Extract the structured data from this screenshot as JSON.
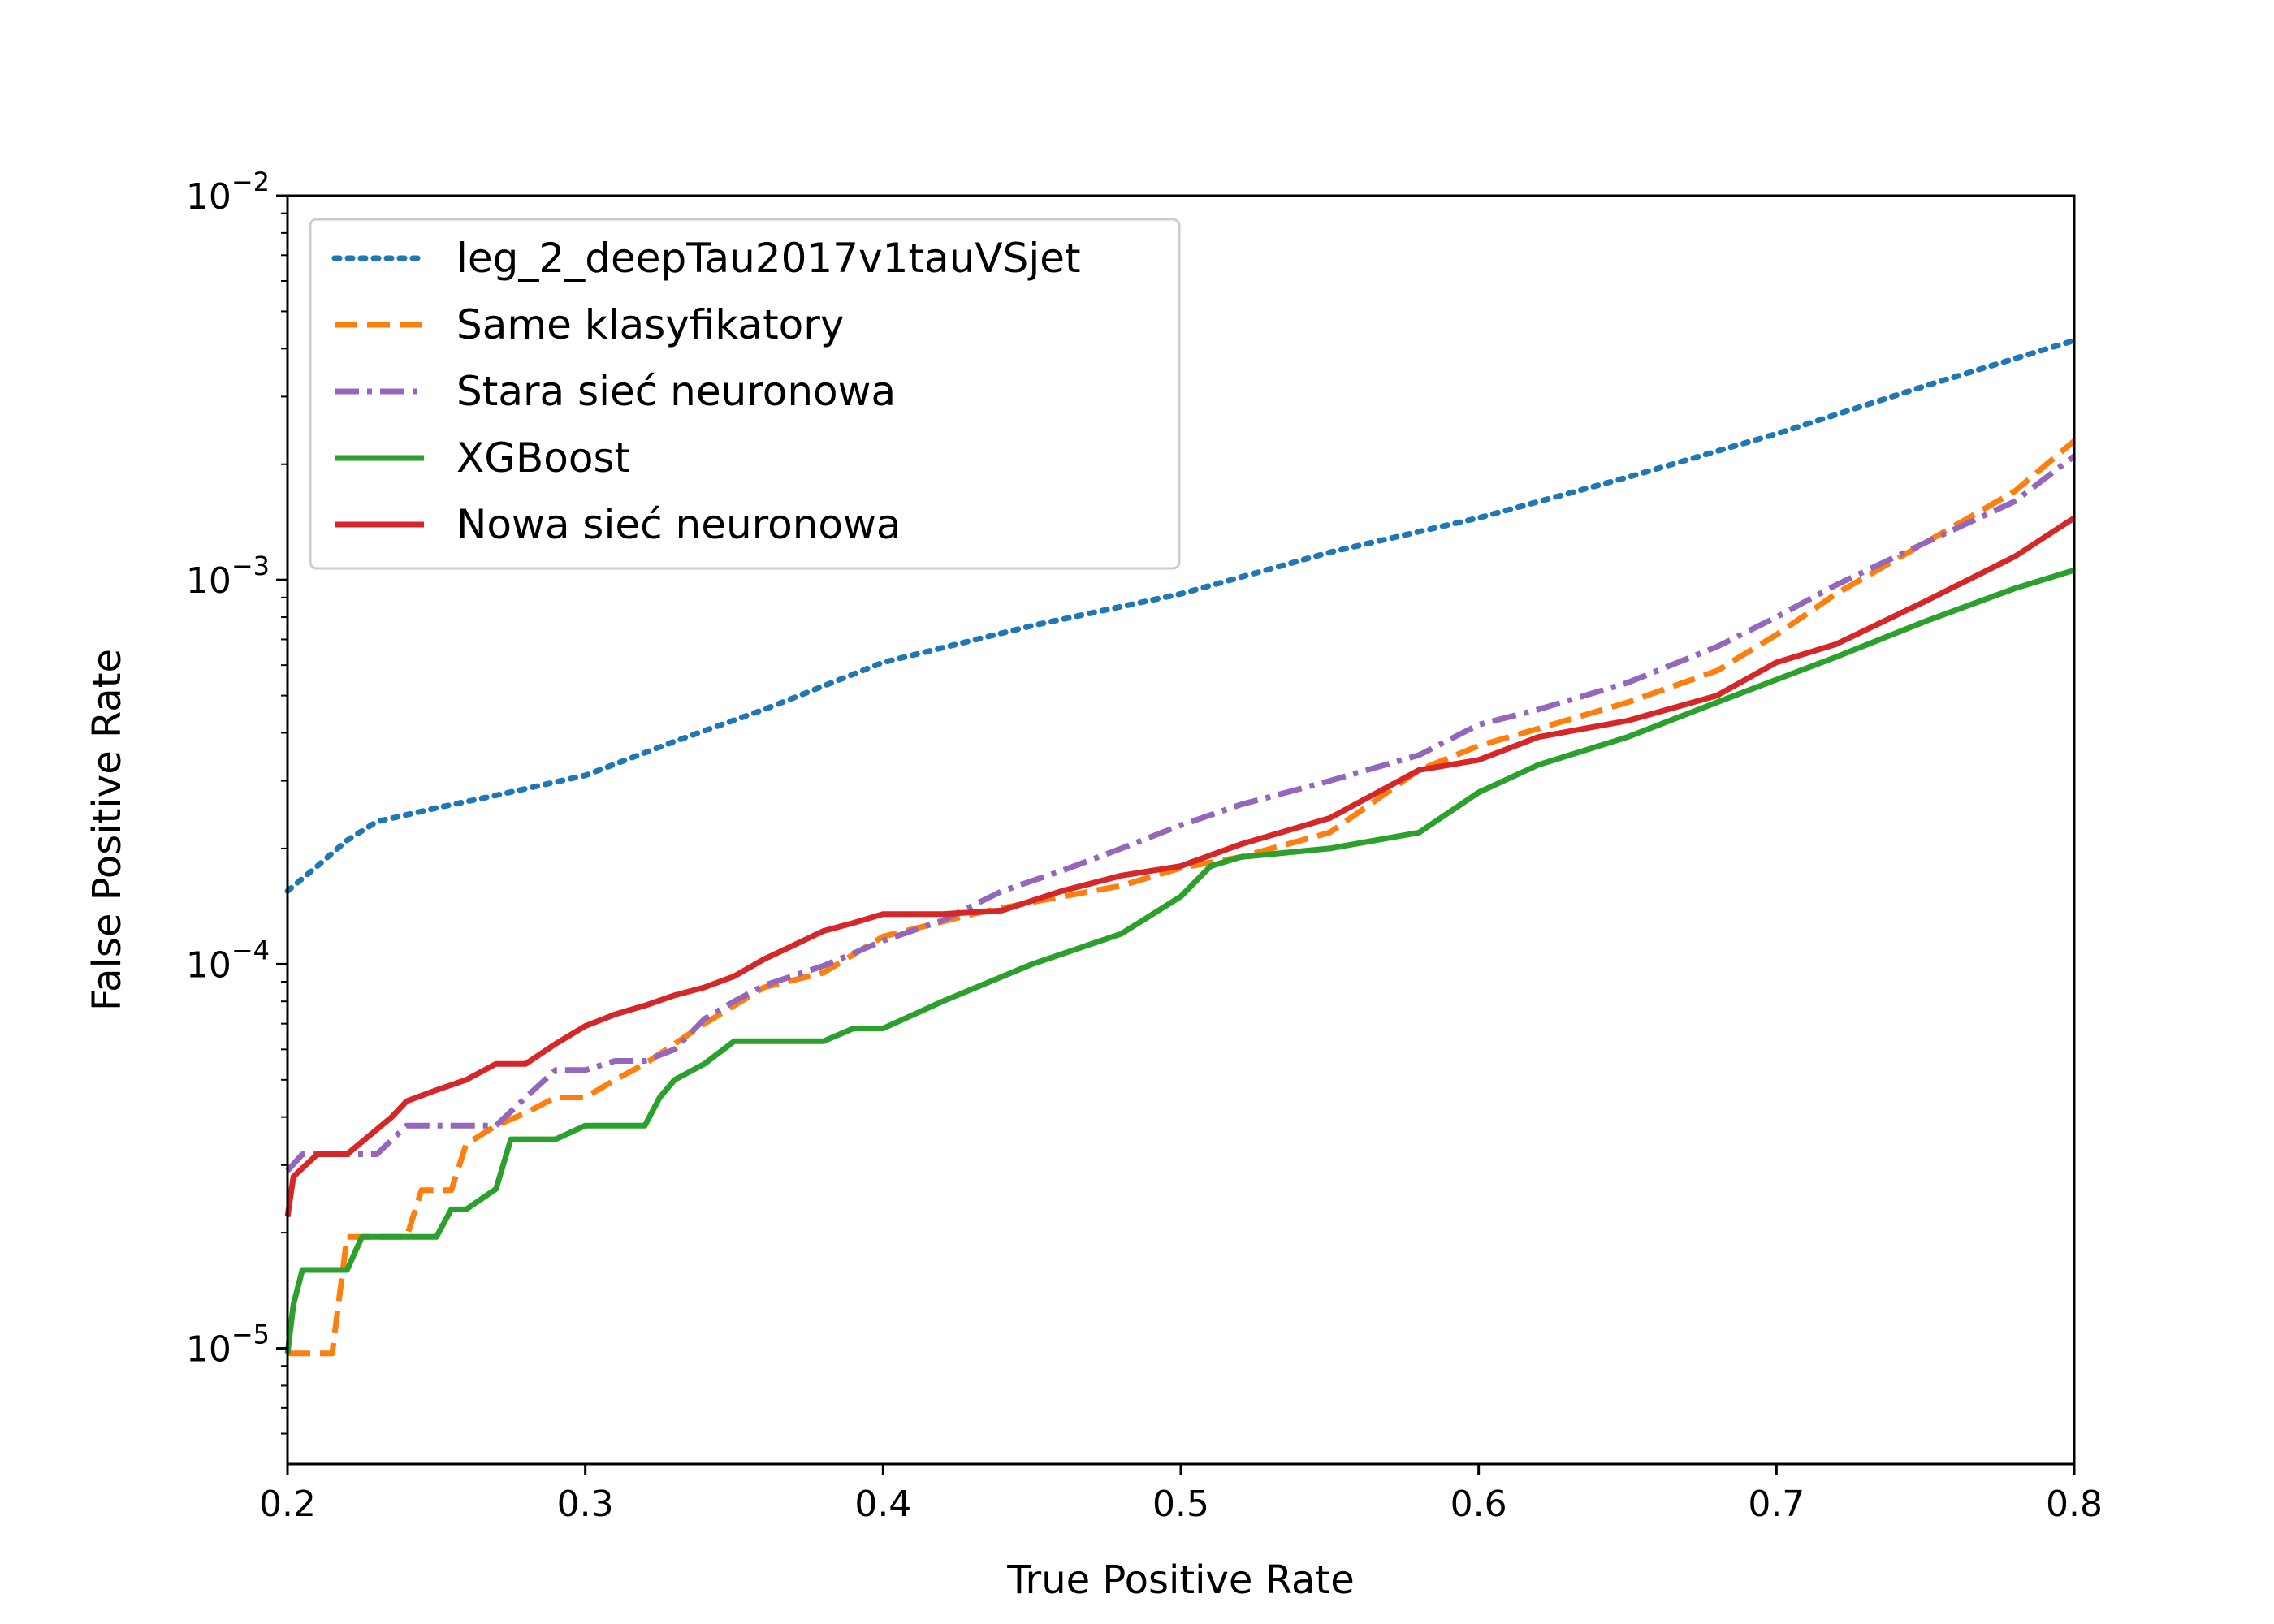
{
  "chart_data": {
    "type": "line",
    "xlabel": "True Positive Rate",
    "ylabel": "False Positive Rate",
    "xlim": [
      0.2,
      0.8
    ],
    "ylim": [
      5e-06,
      0.01
    ],
    "yscale": "log",
    "x_ticks": [
      {
        "value": 0.2,
        "label": "0.2"
      },
      {
        "value": 0.3,
        "label": "0.3"
      },
      {
        "value": 0.4,
        "label": "0.4"
      },
      {
        "value": 0.5,
        "label": "0.5"
      },
      {
        "value": 0.6,
        "label": "0.6"
      },
      {
        "value": 0.7,
        "label": "0.7"
      },
      {
        "value": 0.8,
        "label": "0.8"
      }
    ],
    "y_ticks": [
      {
        "value": 1e-05,
        "base": "10",
        "exp": "−5"
      },
      {
        "value": 0.0001,
        "base": "10",
        "exp": "−4"
      },
      {
        "value": 0.001,
        "base": "10",
        "exp": "−3"
      },
      {
        "value": 0.01,
        "base": "10",
        "exp": "−2"
      }
    ],
    "legend_position": "top-left",
    "grid": false,
    "series": [
      {
        "name": "leg_2_deepTau2017v1tauVSjet",
        "color": "#1f77b4",
        "style": "dotted",
        "x": [
          0.2,
          0.21,
          0.22,
          0.23,
          0.25,
          0.27,
          0.3,
          0.33,
          0.36,
          0.4,
          0.45,
          0.5,
          0.55,
          0.6,
          0.65,
          0.7,
          0.75,
          0.8
        ],
        "y": [
          0.000155,
          0.00018,
          0.00021,
          0.000235,
          0.000255,
          0.000275,
          0.00031,
          0.00038,
          0.00046,
          0.00061,
          0.00076,
          0.00092,
          0.00118,
          0.00145,
          0.00185,
          0.0024,
          0.0032,
          0.0042
        ]
      },
      {
        "name": "Same klasyfikatory",
        "color": "#ff7f0e",
        "style": "dashed",
        "x": [
          0.2,
          0.205,
          0.215,
          0.22,
          0.225,
          0.24,
          0.245,
          0.25,
          0.255,
          0.26,
          0.27,
          0.28,
          0.29,
          0.3,
          0.31,
          0.32,
          0.33,
          0.34,
          0.35,
          0.36,
          0.38,
          0.4,
          0.43,
          0.45,
          0.48,
          0.5,
          0.52,
          0.55,
          0.58,
          0.6,
          0.62,
          0.65,
          0.68,
          0.7,
          0.72,
          0.75,
          0.78,
          0.8
        ],
        "y": [
          9.7e-06,
          9.7e-06,
          9.7e-06,
          1.95e-05,
          1.95e-05,
          1.95e-05,
          2.58e-05,
          2.58e-05,
          2.58e-05,
          3.4e-05,
          3.8e-05,
          4.1e-05,
          4.5e-05,
          4.5e-05,
          5e-05,
          5.5e-05,
          6.2e-05,
          7e-05,
          7.8e-05,
          8.7e-05,
          9.5e-05,
          0.000118,
          0.000135,
          0.000145,
          0.00016,
          0.000178,
          0.00019,
          0.00022,
          0.00032,
          0.00037,
          0.00041,
          0.00048,
          0.00058,
          0.00072,
          0.00092,
          0.00125,
          0.0017,
          0.0023
        ]
      },
      {
        "name": "Stara sieć neuronowa",
        "color": "#9467bd",
        "style": "dashdot",
        "x": [
          0.2,
          0.205,
          0.21,
          0.22,
          0.23,
          0.24,
          0.25,
          0.26,
          0.27,
          0.28,
          0.29,
          0.3,
          0.31,
          0.32,
          0.33,
          0.34,
          0.35,
          0.36,
          0.38,
          0.4,
          0.42,
          0.44,
          0.46,
          0.48,
          0.5,
          0.52,
          0.55,
          0.58,
          0.6,
          0.62,
          0.65,
          0.68,
          0.7,
          0.72,
          0.75,
          0.78,
          0.8
        ],
        "y": [
          2.9e-05,
          3.2e-05,
          3.2e-05,
          3.2e-05,
          3.2e-05,
          3.8e-05,
          3.8e-05,
          3.8e-05,
          3.8e-05,
          4.5e-05,
          5.3e-05,
          5.3e-05,
          5.6e-05,
          5.6e-05,
          6e-05,
          7.2e-05,
          8e-05,
          8.8e-05,
          9.9e-05,
          0.000115,
          0.00013,
          0.000155,
          0.000175,
          0.0002,
          0.00023,
          0.00026,
          0.0003,
          0.00035,
          0.00042,
          0.00046,
          0.00054,
          0.00067,
          0.0008,
          0.00097,
          0.00125,
          0.0016,
          0.0021
        ]
      },
      {
        "name": "XGBoost",
        "color": "#2ca02c",
        "style": "solid",
        "x": [
          0.2,
          0.202,
          0.205,
          0.21,
          0.22,
          0.225,
          0.24,
          0.25,
          0.255,
          0.26,
          0.27,
          0.275,
          0.28,
          0.29,
          0.3,
          0.32,
          0.325,
          0.33,
          0.34,
          0.35,
          0.36,
          0.37,
          0.38,
          0.39,
          0.4,
          0.42,
          0.45,
          0.48,
          0.5,
          0.51,
          0.52,
          0.55,
          0.58,
          0.6,
          0.62,
          0.65,
          0.68,
          0.7,
          0.72,
          0.75,
          0.78,
          0.8
        ],
        "y": [
          9.7e-06,
          1.3e-05,
          1.6e-05,
          1.6e-05,
          1.6e-05,
          1.95e-05,
          1.95e-05,
          1.95e-05,
          2.3e-05,
          2.3e-05,
          2.6e-05,
          3.5e-05,
          3.5e-05,
          3.5e-05,
          3.8e-05,
          3.8e-05,
          4.5e-05,
          5e-05,
          5.5e-05,
          6.3e-05,
          6.3e-05,
          6.3e-05,
          6.3e-05,
          6.8e-05,
          6.8e-05,
          8e-05,
          0.0001,
          0.00012,
          0.00015,
          0.00018,
          0.00019,
          0.0002,
          0.00022,
          0.00028,
          0.00033,
          0.00039,
          0.00048,
          0.00055,
          0.00063,
          0.00078,
          0.00095,
          0.00106
        ]
      },
      {
        "name": "Nowa sieć neuronowa",
        "color": "#d62728",
        "style": "solid",
        "x": [
          0.2,
          0.202,
          0.21,
          0.22,
          0.235,
          0.24,
          0.25,
          0.26,
          0.27,
          0.28,
          0.29,
          0.3,
          0.31,
          0.32,
          0.33,
          0.34,
          0.35,
          0.36,
          0.37,
          0.38,
          0.39,
          0.4,
          0.42,
          0.44,
          0.46,
          0.48,
          0.5,
          0.52,
          0.55,
          0.58,
          0.6,
          0.62,
          0.65,
          0.68,
          0.7,
          0.72,
          0.75,
          0.78,
          0.8
        ],
        "y": [
          2.2e-05,
          2.8e-05,
          3.2e-05,
          3.2e-05,
          4e-05,
          4.4e-05,
          4.7e-05,
          5e-05,
          5.5e-05,
          5.5e-05,
          6.2e-05,
          6.9e-05,
          7.4e-05,
          7.8e-05,
          8.3e-05,
          8.7e-05,
          9.3e-05,
          0.000103,
          0.000112,
          0.000122,
          0.000128,
          0.000135,
          0.000135,
          0.000138,
          0.000155,
          0.00017,
          0.00018,
          0.000205,
          0.00024,
          0.00032,
          0.00034,
          0.00039,
          0.00043,
          0.0005,
          0.00061,
          0.00068,
          0.00088,
          0.00115,
          0.00145
        ]
      }
    ]
  }
}
